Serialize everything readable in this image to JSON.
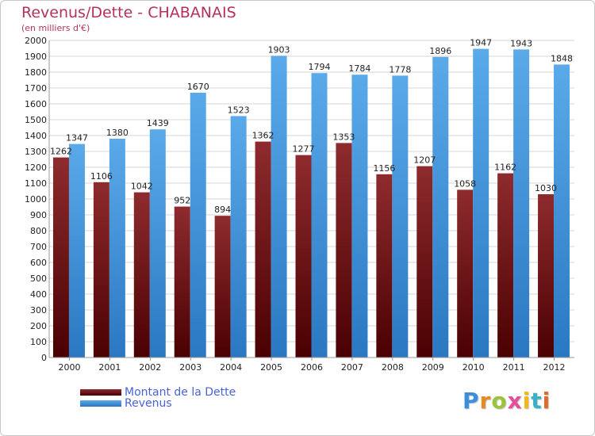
{
  "title": "Revenus/Dette - CHABANAIS",
  "subtitle": "(en milliers d'€)",
  "colors": {
    "title": "#b5305e",
    "dette_top": "#8e2b2e",
    "dette_bottom": "#4a0002",
    "revenus_top": "#5aaaea",
    "revenus_bottom": "#2a78c2",
    "legend_text": "#4a62d8"
  },
  "chart_data": {
    "type": "bar",
    "categories": [
      "2000",
      "2001",
      "2002",
      "2003",
      "2004",
      "2005",
      "2006",
      "2007",
      "2008",
      "2009",
      "2010",
      "2011",
      "2012"
    ],
    "series": [
      {
        "name": "Montant de la Dette",
        "values": [
          1262,
          1106,
          1042,
          952,
          894,
          1362,
          1277,
          1353,
          1156,
          1207,
          1058,
          1162,
          1030
        ],
        "labels": [
          "1262",
          "1106",
          "1042",
          "952",
          "894",
          "1362",
          "1277",
          "1353",
          "1156",
          "1207",
          "1058",
          "1162",
          "1030"
        ]
      },
      {
        "name": "Revenus",
        "values": [
          1347,
          1380,
          1439,
          1670,
          1523,
          1903,
          1794,
          1784,
          1778,
          1896,
          1947,
          1943,
          1848
        ],
        "labels": [
          "1347",
          "1380",
          "1439",
          "1670",
          "1523",
          "1903",
          "1794",
          "1784",
          "1778",
          "1896",
          "1947",
          "1943",
          "1848"
        ]
      }
    ],
    "ylim": [
      0,
      2000
    ],
    "yticks": [
      0,
      100,
      200,
      300,
      400,
      500,
      600,
      700,
      800,
      900,
      1000,
      1100,
      1200,
      1300,
      1400,
      1500,
      1600,
      1700,
      1800,
      1900,
      2000
    ],
    "grid": true,
    "legend_position": "bottom-left"
  },
  "logo": {
    "letters": [
      "P",
      "r",
      "o",
      "x",
      "i",
      "t",
      "i"
    ],
    "colors": [
      "#3a8fd8",
      "#e58a1f",
      "#9ac43a",
      "#e54d9b",
      "#f2b81a",
      "#3ab0c8",
      "#e06a2a"
    ]
  }
}
